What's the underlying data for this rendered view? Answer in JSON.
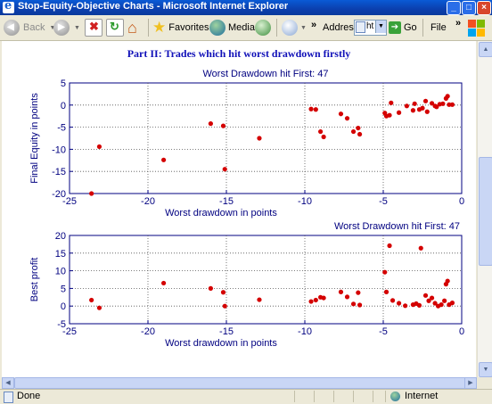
{
  "window": {
    "title": "Stop-Equity-Objective Charts - Microsoft Internet Explorer"
  },
  "toolbar": {
    "back_label": "Back",
    "favorites_label": "Favorites",
    "media_label": "Media",
    "address_label": "Address",
    "address_value": "ht",
    "go_label": "Go",
    "file_label": "File"
  },
  "page": {
    "heading": "Part II: Trades which hit worst drawdown firstly"
  },
  "status": {
    "left": "Done",
    "zone": "Internet"
  },
  "colors": {
    "points": "#d40000",
    "axes": "#000080",
    "heading": "#1010b8",
    "titlebar": "#0b3fae"
  },
  "chart_data": [
    {
      "type": "scatter",
      "title": "Worst Drawdown hit First: 47",
      "xlabel": "Worst drawdown in points",
      "ylabel": "Final Equity in points",
      "xlim": [
        -25,
        0
      ],
      "ylim": [
        -20,
        5
      ],
      "xticks": [
        -25,
        -20,
        -15,
        -10,
        -5,
        0
      ],
      "yticks": [
        -20,
        -15,
        -10,
        -5,
        0,
        5
      ],
      "grid": true,
      "points": [
        [
          -23.6,
          -20.0
        ],
        [
          -23.1,
          -9.4
        ],
        [
          -19.0,
          -12.4
        ],
        [
          -16.0,
          -4.2
        ],
        [
          -15.2,
          -4.7
        ],
        [
          -15.1,
          -14.5
        ],
        [
          -12.9,
          -7.5
        ],
        [
          -9.6,
          -0.9
        ],
        [
          -9.3,
          -1.0
        ],
        [
          -9.0,
          -6.0
        ],
        [
          -8.8,
          -7.2
        ],
        [
          -7.7,
          -2.0
        ],
        [
          -7.3,
          -3.0
        ],
        [
          -6.9,
          -6.0
        ],
        [
          -6.6,
          -5.2
        ],
        [
          -6.5,
          -6.6
        ],
        [
          -4.9,
          -1.8
        ],
        [
          -4.8,
          -2.5
        ],
        [
          -4.6,
          -2.3
        ],
        [
          -4.5,
          0.5
        ],
        [
          -4.0,
          -1.7
        ],
        [
          -3.5,
          -0.2
        ],
        [
          -3.1,
          -1.2
        ],
        [
          -3.0,
          0.3
        ],
        [
          -2.7,
          -1.0
        ],
        [
          -2.5,
          -0.7
        ],
        [
          -2.3,
          0.9
        ],
        [
          -2.2,
          -1.5
        ],
        [
          -1.9,
          0.4
        ],
        [
          -1.7,
          -0.2
        ],
        [
          -1.6,
          -0.4
        ],
        [
          -1.4,
          0.2
        ],
        [
          -1.2,
          0.3
        ],
        [
          -1.0,
          1.5
        ],
        [
          -0.9,
          2.0
        ],
        [
          -0.8,
          0.1
        ],
        [
          -0.6,
          0.1
        ]
      ]
    },
    {
      "type": "scatter",
      "title": "Worst Drawdown hit First: 47",
      "xlabel": "Worst drawdown in points",
      "ylabel": "Best profit",
      "xlim": [
        -25,
        0
      ],
      "ylim": [
        -5,
        20
      ],
      "xticks": [
        -25,
        -20,
        -15,
        -10,
        -5,
        0
      ],
      "yticks": [
        -5,
        0,
        5,
        10,
        15,
        20
      ],
      "grid": true,
      "points": [
        [
          -23.6,
          1.7
        ],
        [
          -23.1,
          -0.5
        ],
        [
          -19.0,
          6.5
        ],
        [
          -16.0,
          5.0
        ],
        [
          -15.2,
          3.9
        ],
        [
          -15.1,
          0.0
        ],
        [
          -12.9,
          1.8
        ],
        [
          -9.6,
          1.3
        ],
        [
          -9.3,
          1.7
        ],
        [
          -9.0,
          2.5
        ],
        [
          -8.8,
          2.3
        ],
        [
          -7.7,
          4.0
        ],
        [
          -7.3,
          2.6
        ],
        [
          -6.9,
          0.6
        ],
        [
          -6.6,
          3.8
        ],
        [
          -6.5,
          0.3
        ],
        [
          -4.9,
          9.6
        ],
        [
          -4.8,
          4.0
        ],
        [
          -4.6,
          17.1
        ],
        [
          -4.4,
          1.6
        ],
        [
          -4.0,
          0.8
        ],
        [
          -3.6,
          0.1
        ],
        [
          -3.1,
          0.4
        ],
        [
          -2.9,
          0.7
        ],
        [
          -2.7,
          0.2
        ],
        [
          -2.6,
          16.4
        ],
        [
          -2.3,
          3.0
        ],
        [
          -2.1,
          1.5
        ],
        [
          -1.9,
          2.3
        ],
        [
          -1.7,
          0.8
        ],
        [
          -1.5,
          0.0
        ],
        [
          -1.3,
          0.4
        ],
        [
          -1.1,
          1.5
        ],
        [
          -1.0,
          6.2
        ],
        [
          -0.9,
          7.1
        ],
        [
          -0.8,
          0.4
        ],
        [
          -0.6,
          0.9
        ]
      ]
    }
  ]
}
